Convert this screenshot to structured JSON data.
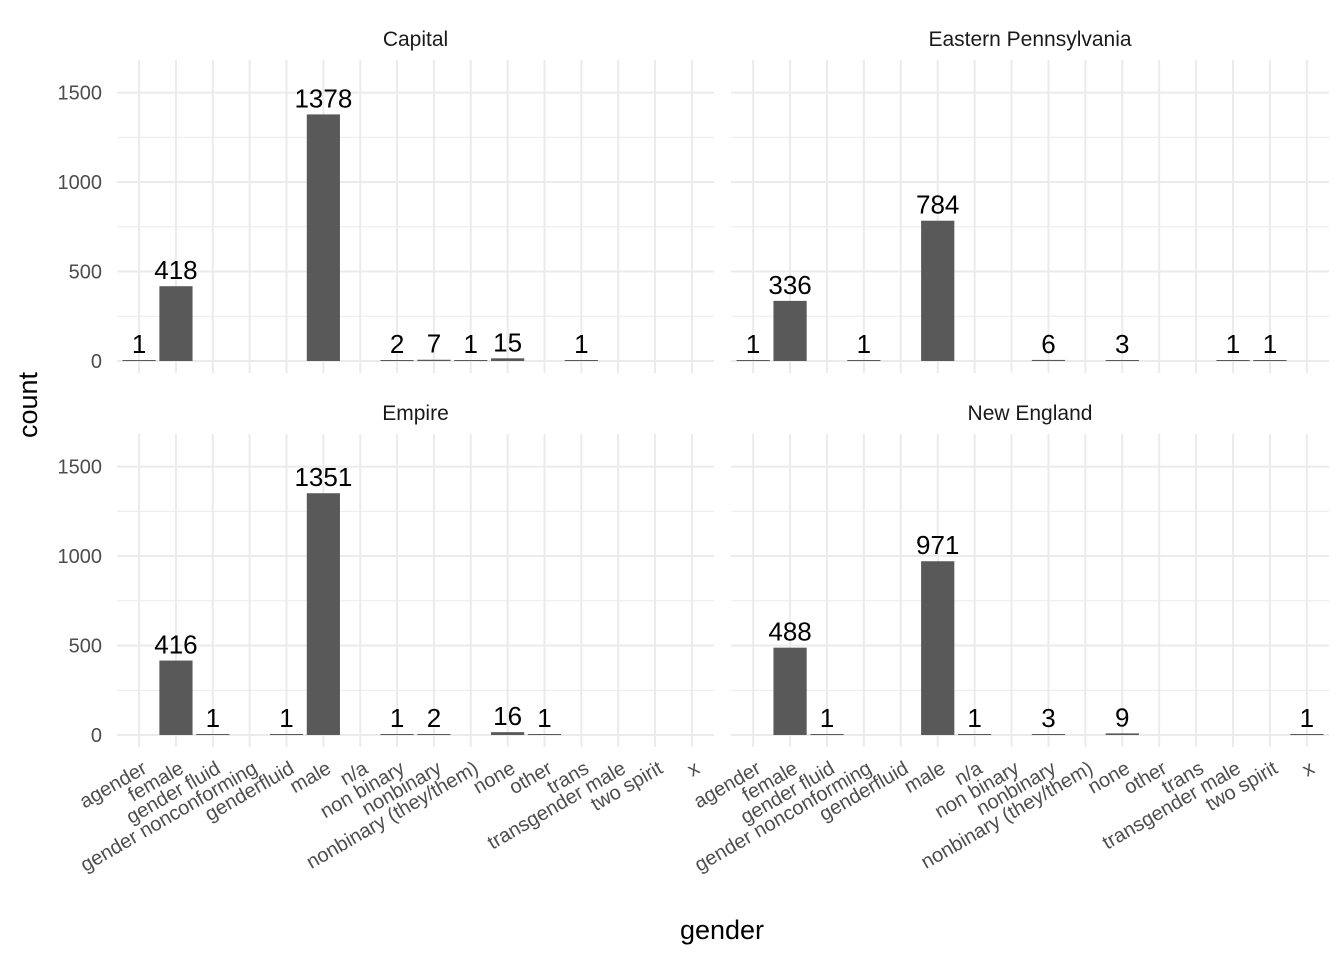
{
  "chart_data": {
    "type": "bar",
    "xlabel": "gender",
    "ylabel": "count",
    "ylim": [
      0,
      1500
    ],
    "yticks": [
      0,
      500,
      1000,
      1500
    ],
    "grid": true,
    "facet_layout": "2x2",
    "bar_color": "#595959",
    "grid_color": "#ebebeb",
    "categories": [
      "agender",
      "female",
      "gender fluid",
      "gender nonconforming",
      "genderfluid",
      "male",
      "n/a",
      "non binary",
      "nonbinary",
      "nonbinary (they/them)",
      "none",
      "other",
      "trans",
      "transgender male",
      "two spirit",
      "x"
    ],
    "panels": [
      {
        "name": "Capital",
        "values": [
          1,
          418,
          null,
          null,
          null,
          1378,
          null,
          2,
          7,
          1,
          15,
          null,
          1,
          null,
          null,
          null
        ]
      },
      {
        "name": "Eastern Pennsylvania",
        "values": [
          1,
          336,
          null,
          1,
          null,
          784,
          null,
          null,
          6,
          null,
          3,
          null,
          null,
          1,
          1,
          null
        ]
      },
      {
        "name": "Empire",
        "values": [
          null,
          416,
          1,
          null,
          1,
          1351,
          null,
          1,
          2,
          null,
          16,
          1,
          null,
          null,
          null,
          null
        ]
      },
      {
        "name": "New England",
        "values": [
          null,
          488,
          1,
          null,
          null,
          971,
          1,
          null,
          3,
          null,
          9,
          null,
          null,
          null,
          null,
          1
        ]
      }
    ]
  }
}
